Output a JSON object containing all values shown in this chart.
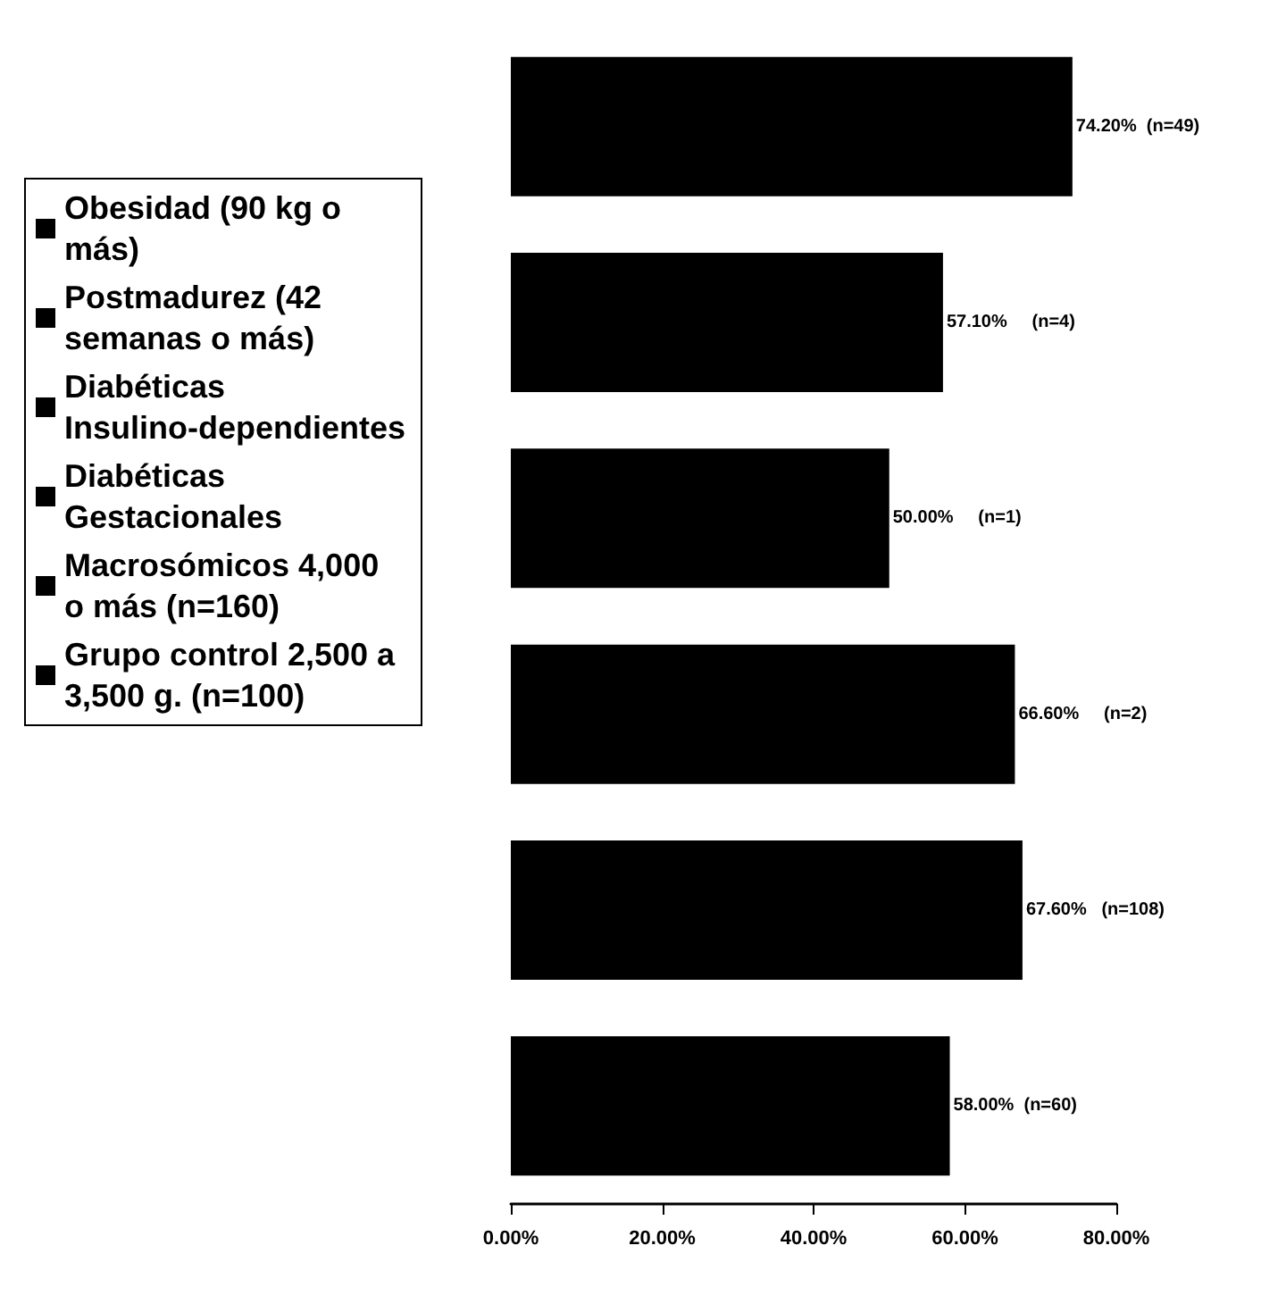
{
  "chart_data": {
    "type": "bar",
    "orientation": "horizontal",
    "stacked": true,
    "categories": [
      null,
      null,
      null,
      null,
      null,
      null
    ],
    "series": [
      {
        "name": "Obesidad (90 kg o más)",
        "color": "#000000",
        "values": [
          74.2,
          null,
          null,
          null,
          null,
          null
        ],
        "value_labels": [
          "74.20%  (n=49)",
          null,
          null,
          null,
          null,
          null
        ]
      },
      {
        "name": "Postmadurez (42 semanas o más)",
        "color": "#000000",
        "values": [
          null,
          57.1,
          null,
          null,
          null,
          null
        ],
        "value_labels": [
          null,
          "57.10%     (n=4)",
          null,
          null,
          null,
          null
        ]
      },
      {
        "name": "Diabéticas Insulino-dependientes",
        "color": "#000000",
        "values": [
          null,
          null,
          50,
          null,
          null,
          null
        ],
        "value_labels": [
          null,
          null,
          "50.00%     (n=1)",
          null,
          null,
          null
        ]
      },
      {
        "name": "Diabéticas Gestacionales",
        "color": "#000000",
        "values": [
          null,
          null,
          null,
          66.6,
          null,
          null
        ],
        "value_labels": [
          null,
          null,
          null,
          "66.60%     (n=2)",
          null,
          null
        ]
      },
      {
        "name": "Macrosómicos 4,000 o más (n=160)",
        "color": "#000000",
        "values": [
          null,
          null,
          null,
          null,
          67.6,
          null
        ],
        "value_labels": [
          null,
          null,
          null,
          null,
          "67.60%   (n=108)",
          null
        ]
      },
      {
        "name": "Grupo control 2,500 a 3,500 g. (n=100)",
        "color": "#000000",
        "values": [
          null,
          null,
          null,
          null,
          null,
          58
        ],
        "value_labels": [
          null,
          null,
          null,
          null,
          null,
          "58.00%  (n=60)"
        ]
      }
    ],
    "xlim": [
      0,
      80
    ],
    "xticks": [
      {
        "value": 0,
        "label": "0.00%"
      },
      {
        "value": 20,
        "label": "20.00%"
      },
      {
        "value": 40,
        "label": "40.00%"
      },
      {
        "value": 60,
        "label": "60.00%"
      },
      {
        "value": 80,
        "label": "80.00%"
      }
    ],
    "grid": false,
    "legend": "left",
    "tick_labels": "x"
  }
}
